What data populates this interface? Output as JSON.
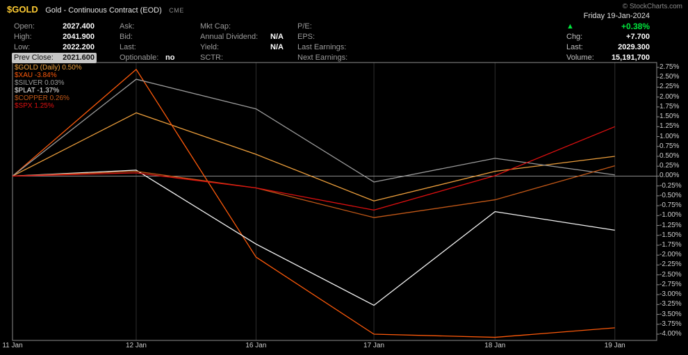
{
  "header": {
    "symbol": "$GOLD",
    "symbol_color": "#ffcc33",
    "title": "Gold - Continuous Contract (EOD)",
    "exchange": "CME",
    "copyright": "© StockCharts.com",
    "date": "Friday 19-Jan-2024",
    "up_arrow": "▲",
    "pct_change": "+0.38%",
    "change_color": "#00e53c",
    "right_rows": [
      {
        "label": "Chg:",
        "value": "+7.700"
      },
      {
        "label": "Last:",
        "value": "2029.300"
      },
      {
        "label": "Volume:",
        "value": "15,191,700"
      }
    ],
    "quote_rows": [
      [
        {
          "label": "Open:",
          "value": "2027.400"
        },
        {
          "label": "Ask:",
          "value": ""
        },
        {
          "label": "Mkt Cap:",
          "value": ""
        },
        {
          "label": "P/E:",
          "value": ""
        }
      ],
      [
        {
          "label": "High:",
          "value": "2041.900"
        },
        {
          "label": "Bid:",
          "value": ""
        },
        {
          "label": "Annual Dividend:",
          "value": "N/A"
        },
        {
          "label": "EPS:",
          "value": ""
        }
      ],
      [
        {
          "label": "Low:",
          "value": "2022.200"
        },
        {
          "label": "Last:",
          "value": ""
        },
        {
          "label": "Yield:",
          "value": "N/A"
        },
        {
          "label": "Last Earnings:",
          "value": ""
        }
      ],
      [
        {
          "label": "Prev Close:",
          "value": "2021.600",
          "highlight": true
        },
        {
          "label": "Optionable:",
          "value": "no"
        },
        {
          "label": "SCTR:",
          "value": ""
        },
        {
          "label": "Next Earnings:",
          "value": ""
        }
      ]
    ]
  },
  "chart_data": {
    "type": "line",
    "title": "Percent performance comparison, 11-Jan-2024 to 19-Jan-2024",
    "x_labels": [
      "11 Jan",
      "12 Jan",
      "16 Jan",
      "17 Jan",
      "18 Jan",
      "19 Jan"
    ],
    "x_positions": [
      0,
      0.192,
      0.378,
      0.561,
      0.749,
      0.935
    ],
    "ylim": [
      -4.0,
      2.75
    ],
    "y_tick_step": 0.25,
    "y_tick_suffix": "%",
    "zero_line": true,
    "legend_position": "top-left",
    "series": [
      {
        "name": "$GOLD",
        "legend": "$GOLD (Daily) 0.50%",
        "pct_label": "0.50%",
        "color": "#efa03c",
        "values": [
          0,
          1.6,
          0.55,
          -0.63,
          0.12,
          0.5
        ]
      },
      {
        "name": "$XAU",
        "legend": "$XAU -3.84%",
        "pct_label": "-3.84%",
        "color": "#ff5a0a",
        "values": [
          0,
          2.7,
          -2.05,
          -4.0,
          -4.08,
          -3.84
        ]
      },
      {
        "name": "$SILVER",
        "legend": "$SILVER 0.03%",
        "pct_label": "0.03%",
        "color": "#9c9c9c",
        "values": [
          0,
          2.45,
          1.7,
          -0.15,
          0.45,
          0.03
        ]
      },
      {
        "name": "$PLAT",
        "legend": "$PLAT -1.37%",
        "pct_label": "-1.37%",
        "color": "#f5f5f5",
        "values": [
          0,
          0.15,
          -1.72,
          -3.27,
          -0.9,
          -1.37
        ]
      },
      {
        "name": "$COPPER",
        "legend": "$COPPER 0.26%",
        "pct_label": "0.26%",
        "color": "#c35817",
        "values": [
          0,
          0.12,
          -0.3,
          -1.05,
          -0.6,
          0.26
        ]
      },
      {
        "name": "$SPX",
        "legend": "$SPX 1.25%",
        "pct_label": "1.25%",
        "color": "#e01010",
        "values": [
          0,
          0.08,
          -0.3,
          -0.86,
          0.01,
          1.25
        ]
      }
    ]
  }
}
